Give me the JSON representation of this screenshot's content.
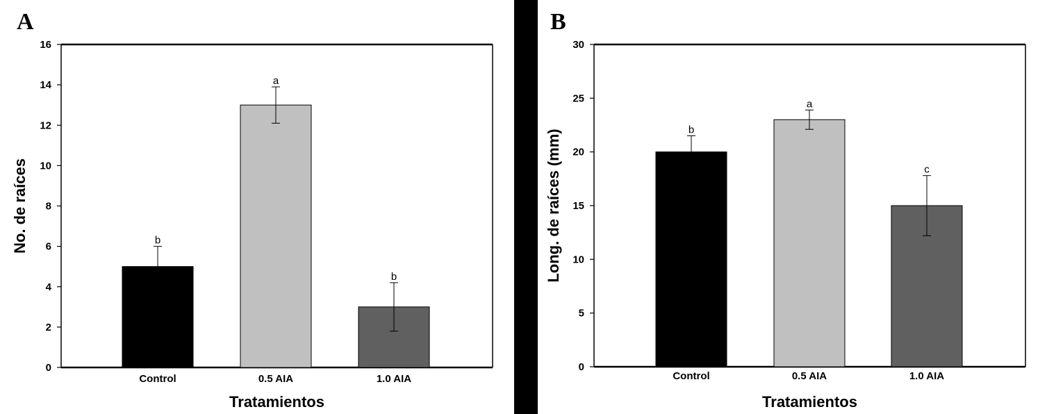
{
  "colors": {
    "background": "#ffffff",
    "separator": "#000000",
    "axis": "#000000",
    "error_bar": "#000000"
  },
  "chart_data": [
    {
      "panel": "A",
      "type": "bar",
      "categories": [
        "Control",
        "0.5 AIA",
        "1.0 AIA"
      ],
      "values": [
        5,
        13,
        3
      ],
      "errors": [
        1.0,
        0.9,
        1.2
      ],
      "significance": [
        "b",
        "a",
        "b"
      ],
      "bar_colors": [
        "#000000",
        "#c0c0c0",
        "#606060"
      ],
      "xlabel": "Tratamientos",
      "ylabel": "No. de raíces",
      "ylim": [
        0,
        16
      ],
      "yticks": [
        0,
        2,
        4,
        6,
        8,
        10,
        12,
        14,
        16
      ],
      "ytick_labels": [
        "0",
        "2",
        "4",
        "6",
        "8",
        "10",
        "12",
        "14",
        "16"
      ]
    },
    {
      "panel": "B",
      "type": "bar",
      "categories": [
        "Control",
        "0.5 AIA",
        "1.0 AIA"
      ],
      "values": [
        20,
        23,
        15
      ],
      "errors": [
        1.5,
        0.9,
        2.8
      ],
      "significance": [
        "b",
        "a",
        "c"
      ],
      "bar_colors": [
        "#000000",
        "#c0c0c0",
        "#606060"
      ],
      "xlabel": "Tratamientos",
      "ylabel": "Long. de raíces (mm)",
      "ylim": [
        0,
        30
      ],
      "yticks": [
        0,
        5,
        10,
        15,
        20,
        25,
        30
      ],
      "ytick_labels": [
        "0",
        "5",
        "10",
        "15",
        "20",
        "25",
        "30"
      ]
    }
  ]
}
